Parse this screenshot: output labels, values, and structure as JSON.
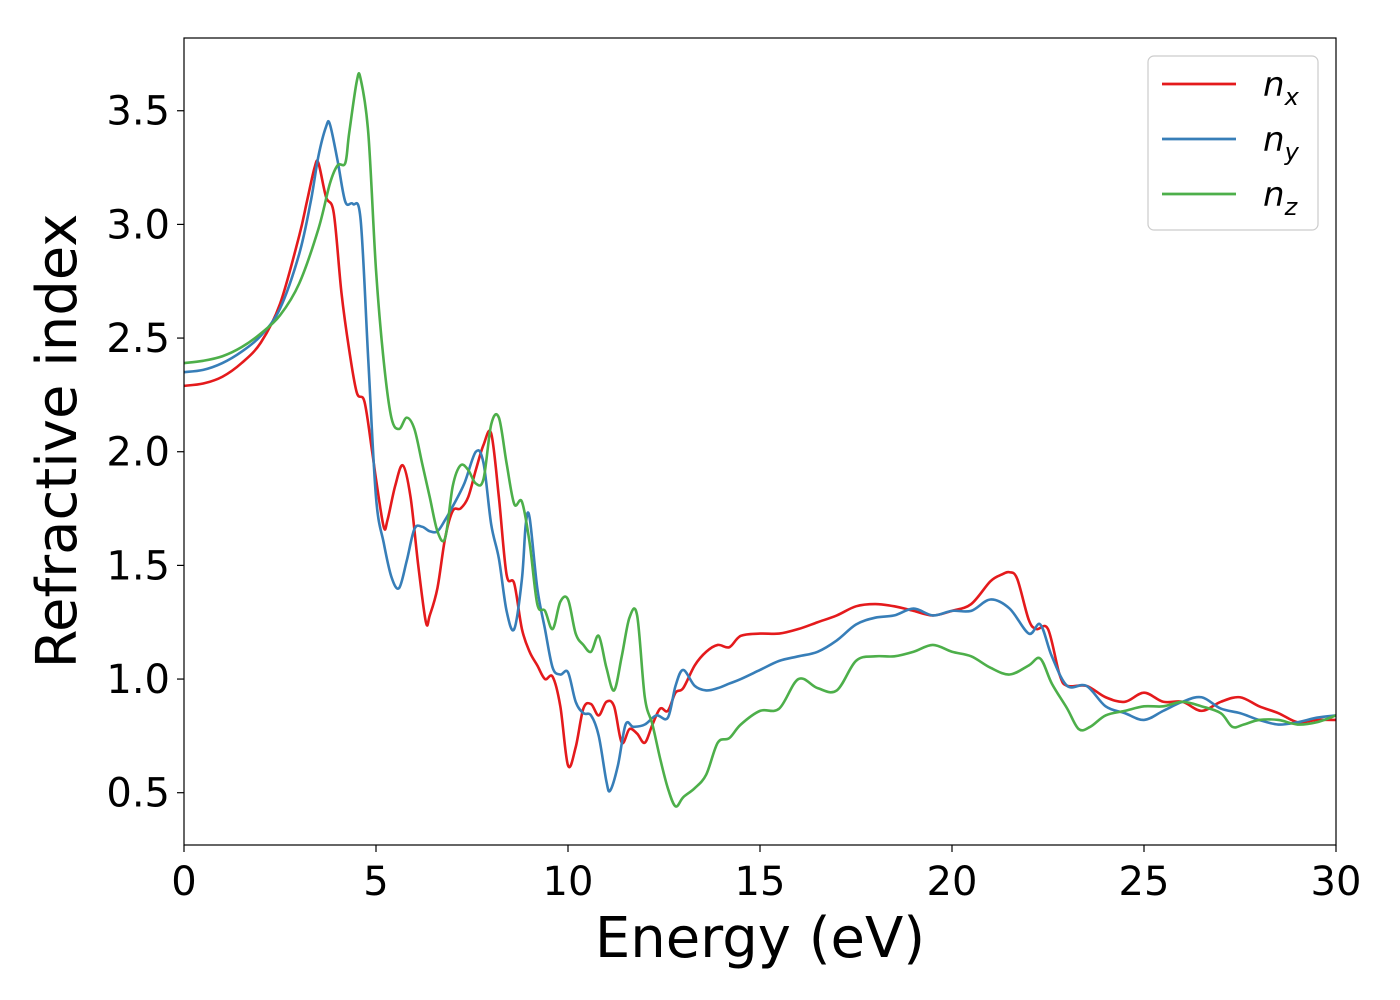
{
  "chart_data": {
    "type": "line",
    "xlabel": "Energy (eV)",
    "ylabel": "Refractive index",
    "xlim": [
      0,
      30
    ],
    "ylim": [
      0.27,
      3.82
    ],
    "grid": false,
    "legend_position": "top-right",
    "xticks": [
      0,
      5,
      10,
      15,
      20,
      25,
      30
    ],
    "yticks": [
      0.5,
      1.0,
      1.5,
      2.0,
      2.5,
      3.0,
      3.5
    ],
    "xtick_labels": [
      "0",
      "5",
      "10",
      "15",
      "20",
      "25",
      "30"
    ],
    "ytick_labels": [
      "0.5",
      "1.0",
      "1.5",
      "2.0",
      "2.5",
      "3.0",
      "3.5"
    ],
    "series": [
      {
        "name": "n_x",
        "legend_base": "n",
        "legend_sub": "x",
        "color": "#e41a1c",
        "x": [
          0,
          0.5,
          1,
          1.5,
          2,
          2.5,
          3,
          3.2,
          3.4,
          3.5,
          3.7,
          3.9,
          4.1,
          4.3,
          4.5,
          4.7,
          4.9,
          5.0,
          5.2,
          5.3,
          5.5,
          5.7,
          5.9,
          6.1,
          6.3,
          6.4,
          6.6,
          6.8,
          7.0,
          7.2,
          7.4,
          7.6,
          7.8,
          8.0,
          8.2,
          8.4,
          8.6,
          8.8,
          9.0,
          9.2,
          9.4,
          9.6,
          9.8,
          10.0,
          10.2,
          10.4,
          10.6,
          10.8,
          11.0,
          11.2,
          11.4,
          11.6,
          11.8,
          12.0,
          12.2,
          12.4,
          12.6,
          12.8,
          13.0,
          13.3,
          13.6,
          13.9,
          14.2,
          14.5,
          15,
          15.5,
          16,
          16.5,
          17,
          17.5,
          18,
          18.5,
          19,
          19.5,
          20,
          20.5,
          21,
          21.3,
          21.5,
          21.7,
          22,
          22.2,
          22.5,
          22.8,
          23,
          23.5,
          24,
          24.5,
          25,
          25.5,
          26,
          26.5,
          27,
          27.5,
          28,
          28.5,
          29,
          29.5,
          30
        ],
        "y": [
          2.29,
          2.3,
          2.33,
          2.39,
          2.48,
          2.65,
          2.95,
          3.1,
          3.25,
          3.27,
          3.12,
          3.05,
          2.7,
          2.45,
          2.26,
          2.22,
          2.0,
          1.88,
          1.67,
          1.7,
          1.85,
          1.94,
          1.8,
          1.5,
          1.25,
          1.28,
          1.4,
          1.62,
          1.74,
          1.75,
          1.8,
          1.92,
          2.03,
          2.08,
          1.8,
          1.46,
          1.42,
          1.22,
          1.12,
          1.06,
          1.0,
          1.01,
          0.88,
          0.62,
          0.7,
          0.87,
          0.89,
          0.84,
          0.9,
          0.88,
          0.72,
          0.78,
          0.76,
          0.72,
          0.8,
          0.87,
          0.86,
          0.94,
          0.96,
          1.06,
          1.12,
          1.15,
          1.14,
          1.19,
          1.2,
          1.2,
          1.22,
          1.25,
          1.28,
          1.32,
          1.33,
          1.32,
          1.3,
          1.28,
          1.3,
          1.33,
          1.43,
          1.46,
          1.47,
          1.44,
          1.26,
          1.22,
          1.22,
          1.02,
          0.97,
          0.97,
          0.92,
          0.9,
          0.94,
          0.9,
          0.9,
          0.86,
          0.9,
          0.92,
          0.88,
          0.85,
          0.81,
          0.82,
          0.82
        ]
      },
      {
        "name": "n_y",
        "legend_base": "n",
        "legend_sub": "y",
        "color": "#377eb8",
        "x": [
          0,
          0.5,
          1,
          1.5,
          2,
          2.5,
          3,
          3.3,
          3.5,
          3.7,
          3.8,
          4.0,
          4.2,
          4.4,
          4.6,
          4.8,
          5.0,
          5.2,
          5.4,
          5.6,
          5.8,
          6.0,
          6.2,
          6.4,
          6.6,
          6.8,
          7.0,
          7.3,
          7.6,
          7.8,
          8.0,
          8.2,
          8.4,
          8.6,
          8.8,
          8.9,
          9.0,
          9.2,
          9.4,
          9.6,
          9.8,
          10.0,
          10.2,
          10.4,
          10.6,
          10.8,
          11.0,
          11.1,
          11.3,
          11.5,
          11.7,
          12.0,
          12.3,
          12.6,
          12.8,
          13.0,
          13.3,
          13.6,
          13.9,
          14.2,
          14.5,
          15,
          15.5,
          16,
          16.5,
          17,
          17.5,
          18,
          18.5,
          19,
          19.5,
          20,
          20.5,
          21,
          21.5,
          22,
          22.3,
          22.6,
          23,
          23.5,
          24,
          24.5,
          25,
          25.5,
          26,
          26.5,
          27,
          27.5,
          28,
          28.5,
          29,
          29.5,
          30
        ],
        "y": [
          2.35,
          2.36,
          2.39,
          2.44,
          2.51,
          2.63,
          2.87,
          3.1,
          3.3,
          3.43,
          3.44,
          3.28,
          3.1,
          3.09,
          3.02,
          2.4,
          1.8,
          1.6,
          1.45,
          1.4,
          1.52,
          1.66,
          1.67,
          1.65,
          1.65,
          1.7,
          1.76,
          1.86,
          2.0,
          1.95,
          1.68,
          1.53,
          1.3,
          1.22,
          1.44,
          1.68,
          1.71,
          1.4,
          1.22,
          1.05,
          1.02,
          1.03,
          0.9,
          0.85,
          0.84,
          0.75,
          0.55,
          0.51,
          0.62,
          0.8,
          0.79,
          0.8,
          0.84,
          0.83,
          0.97,
          1.04,
          0.97,
          0.95,
          0.96,
          0.98,
          1.0,
          1.04,
          1.08,
          1.1,
          1.12,
          1.17,
          1.24,
          1.27,
          1.28,
          1.31,
          1.28,
          1.3,
          1.3,
          1.35,
          1.31,
          1.2,
          1.24,
          1.1,
          0.97,
          0.97,
          0.88,
          0.85,
          0.82,
          0.86,
          0.9,
          0.92,
          0.87,
          0.85,
          0.82,
          0.8,
          0.81,
          0.83,
          0.84
        ]
      },
      {
        "name": "n_z",
        "legend_base": "n",
        "legend_sub": "z",
        "color": "#4daf4a",
        "x": [
          0,
          0.5,
          1,
          1.5,
          2,
          2.5,
          3,
          3.5,
          3.8,
          4.0,
          4.2,
          4.3,
          4.5,
          4.6,
          4.8,
          5.0,
          5.2,
          5.4,
          5.6,
          5.8,
          6.0,
          6.2,
          6.4,
          6.6,
          6.8,
          7.0,
          7.2,
          7.4,
          7.6,
          7.8,
          8.0,
          8.2,
          8.4,
          8.6,
          8.8,
          9.0,
          9.2,
          9.4,
          9.6,
          9.8,
          10.0,
          10.2,
          10.4,
          10.6,
          10.8,
          11.0,
          11.2,
          11.4,
          11.6,
          11.8,
          12.0,
          12.2,
          12.4,
          12.6,
          12.8,
          13.0,
          13.3,
          13.6,
          13.9,
          14.2,
          14.5,
          15,
          15.5,
          16,
          16.5,
          17,
          17.5,
          18,
          18.5,
          19,
          19.5,
          20,
          20.5,
          21,
          21.5,
          22,
          22.3,
          22.6,
          23,
          23.3,
          23.6,
          24,
          24.5,
          25,
          25.5,
          26,
          26.5,
          27,
          27.3,
          27.6,
          28,
          28.5,
          29,
          29.5,
          30
        ],
        "y": [
          2.39,
          2.4,
          2.42,
          2.46,
          2.52,
          2.6,
          2.74,
          2.98,
          3.18,
          3.26,
          3.27,
          3.4,
          3.63,
          3.64,
          3.4,
          2.8,
          2.4,
          2.15,
          2.1,
          2.15,
          2.1,
          1.95,
          1.8,
          1.65,
          1.62,
          1.85,
          1.94,
          1.92,
          1.86,
          1.88,
          2.12,
          2.15,
          1.95,
          1.77,
          1.78,
          1.6,
          1.33,
          1.3,
          1.22,
          1.34,
          1.35,
          1.2,
          1.15,
          1.12,
          1.19,
          1.05,
          0.95,
          1.1,
          1.27,
          1.28,
          0.92,
          0.8,
          0.65,
          0.52,
          0.44,
          0.48,
          0.52,
          0.58,
          0.72,
          0.74,
          0.8,
          0.86,
          0.87,
          1.0,
          0.96,
          0.95,
          1.08,
          1.1,
          1.1,
          1.12,
          1.15,
          1.12,
          1.1,
          1.05,
          1.02,
          1.06,
          1.09,
          0.98,
          0.87,
          0.78,
          0.79,
          0.84,
          0.86,
          0.88,
          0.88,
          0.9,
          0.88,
          0.85,
          0.79,
          0.8,
          0.82,
          0.82,
          0.8,
          0.81,
          0.84
        ]
      }
    ]
  }
}
